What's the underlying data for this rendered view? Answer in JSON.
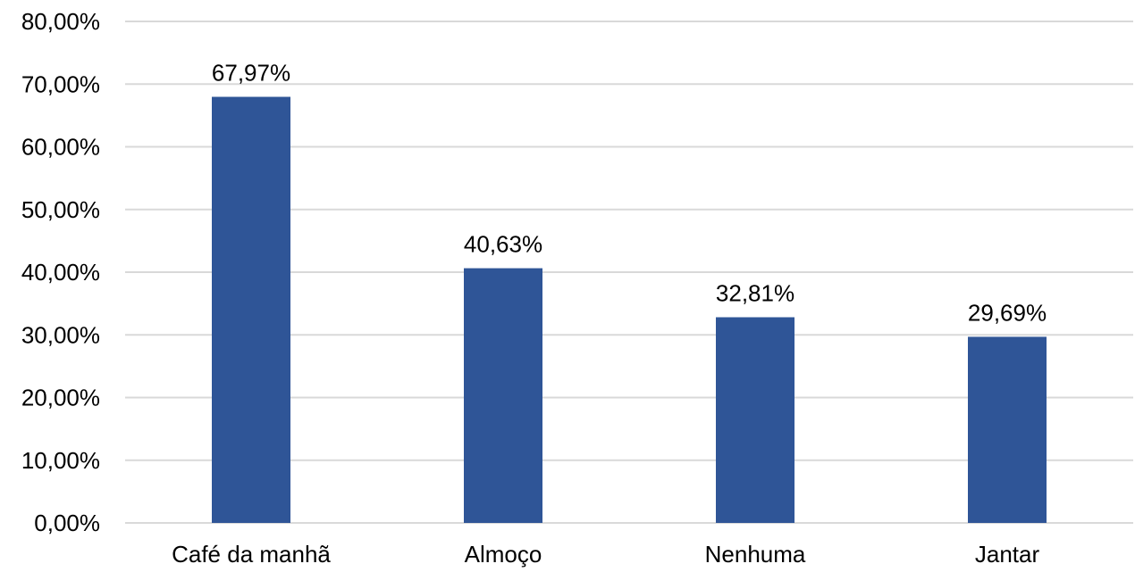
{
  "chart_data": {
    "type": "bar",
    "categories": [
      "Café da manhã",
      "Almoço",
      "Nenhuma",
      "Jantar"
    ],
    "values": [
      67.97,
      40.63,
      32.81,
      29.69
    ],
    "value_labels": [
      "67,97%",
      "40,63%",
      "32,81%",
      "29,69%"
    ],
    "title": "",
    "xlabel": "",
    "ylabel": "",
    "ylim": [
      0,
      80
    ],
    "yticks": [
      0,
      10,
      20,
      30,
      40,
      50,
      60,
      70,
      80
    ],
    "ytick_labels": [
      "0,00%",
      "10,00%",
      "20,00%",
      "30,00%",
      "40,00%",
      "50,00%",
      "60,00%",
      "70,00%",
      "80,00%"
    ],
    "grid": true,
    "legend": "none",
    "colors": {
      "bar": "#2F5597",
      "grid": "#D9D9D9",
      "text": "#000000"
    }
  }
}
